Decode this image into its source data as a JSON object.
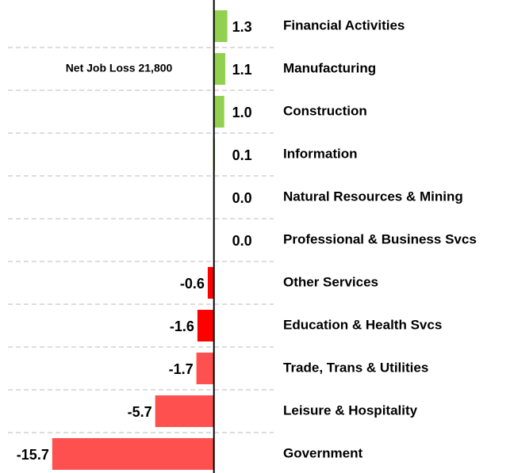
{
  "chart_data": {
    "type": "barh",
    "annotation": "Net Job Loss 21,800",
    "categories": [
      "Financial Activities",
      "Manufacturing",
      "Construction",
      "Information",
      "Natural Resources & Mining",
      "Professional & Business Svcs",
      "Other Services",
      "Education & Health Svcs",
      "Trade, Trans & Utilities",
      "Leisure & Hospitality",
      "Government"
    ],
    "values": [
      1.3,
      1.1,
      1.0,
      0.1,
      0.0,
      0.0,
      -0.6,
      -1.6,
      -1.7,
      -5.7,
      -15.7
    ],
    "value_labels": [
      "1.3",
      "1.1",
      "1.0",
      "0.1",
      "0.0",
      "0.0",
      "-0.6",
      "-1.6",
      "-1.7",
      "-5.7",
      "-15.7"
    ],
    "colors": [
      "#92d050",
      "#92d050",
      "#92d050",
      "#92d050",
      "#92d050",
      "#92d050",
      "#ff0000",
      "#ff0000",
      "#ff5050",
      "#ff5050",
      "#ff5050"
    ],
    "xlim": [
      -20,
      5.8
    ],
    "grid": true
  }
}
